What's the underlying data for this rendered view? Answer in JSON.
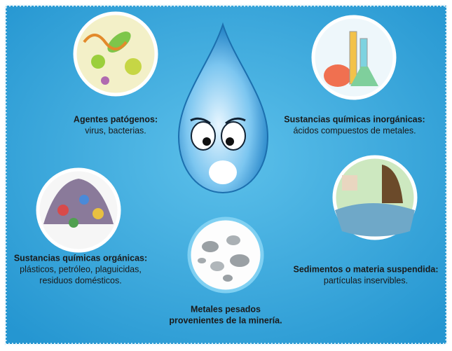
{
  "items": [
    {
      "title": "Agentes patógenos:",
      "lines": [
        "virus, bacterias."
      ]
    },
    {
      "title": "Sustancias químicas inorgánicas:",
      "lines": [
        "ácidos compuestos de metales."
      ]
    },
    {
      "title": "Sustancias químicas orgánicas:",
      "lines": [
        "plásticos, petróleo, plaguicidas,",
        "residuos domésticos."
      ]
    },
    {
      "title": "Sedimentos o materia suspendida:",
      "lines": [
        "partículas inservibles."
      ]
    },
    {
      "title": "Metales pesados",
      "lines": [
        "provenientes de la minería."
      ]
    }
  ]
}
